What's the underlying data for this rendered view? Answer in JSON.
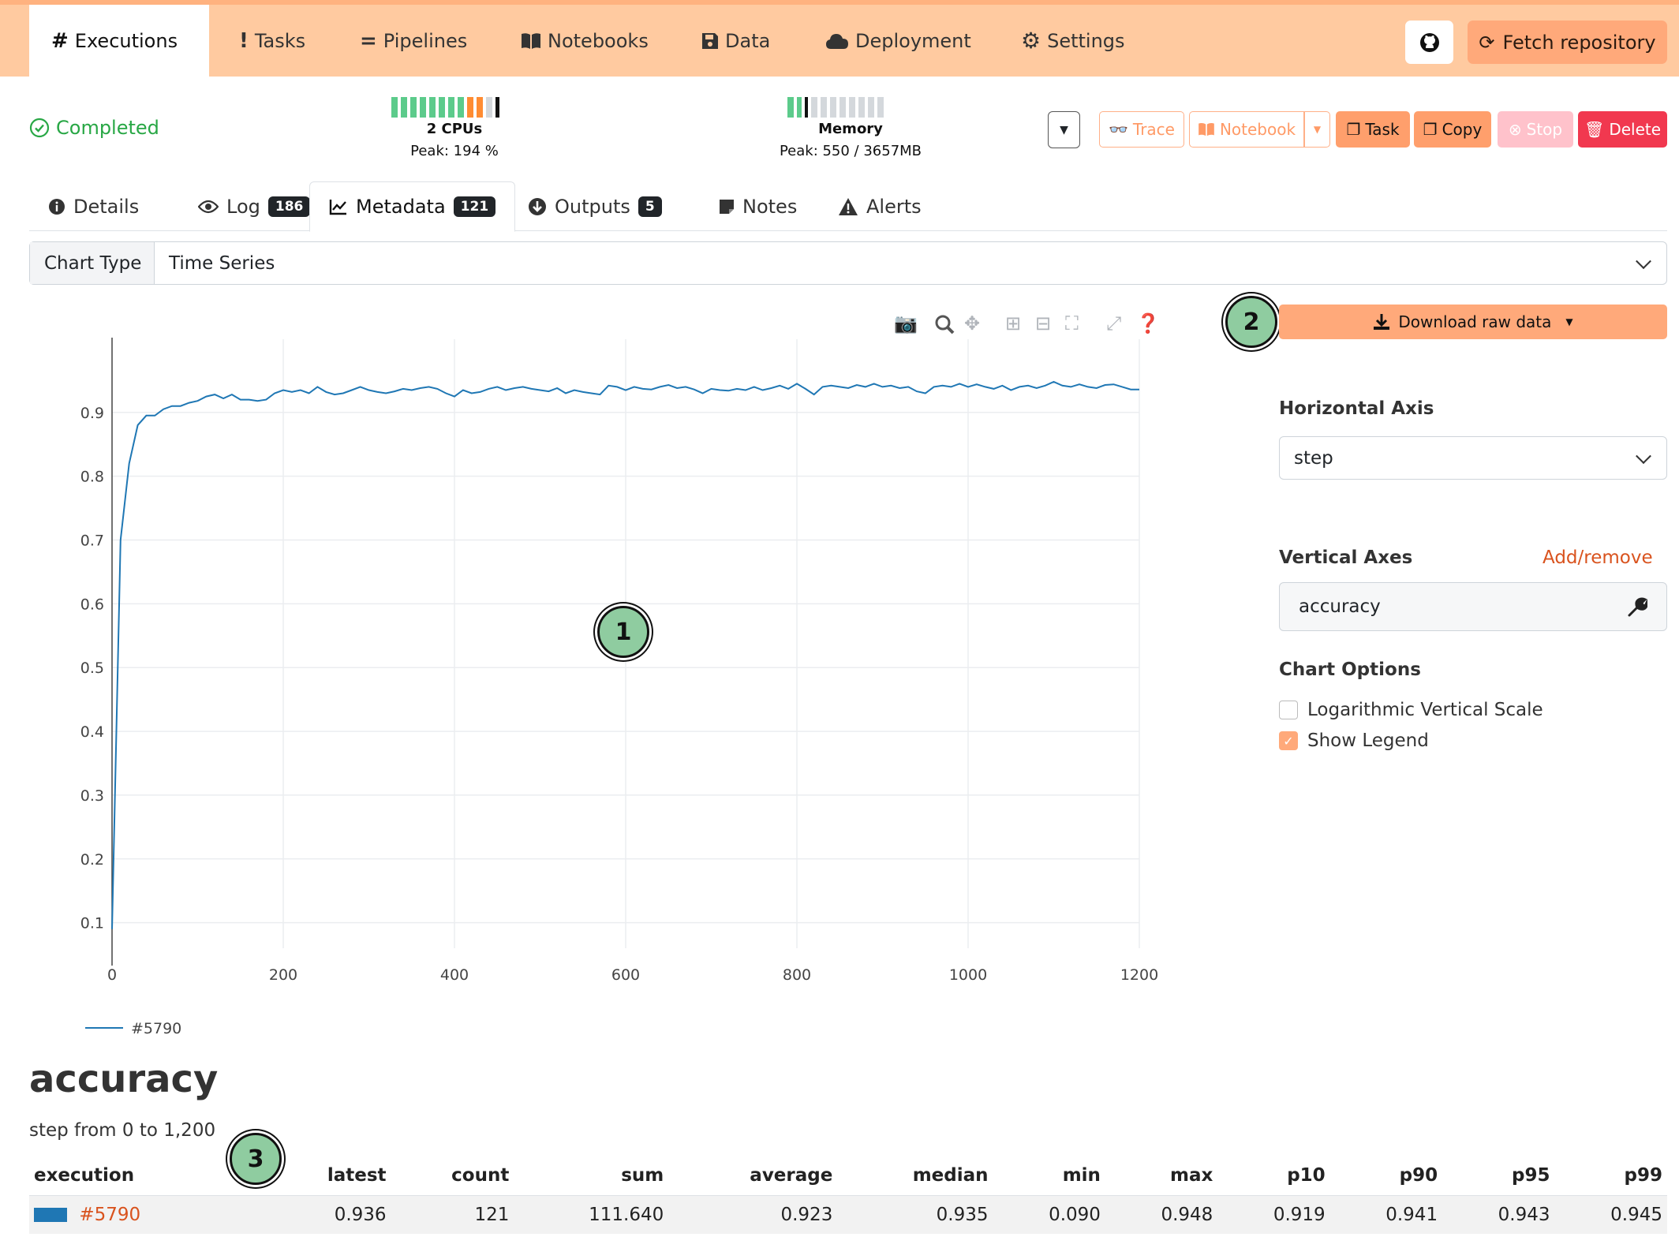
{
  "nav": {
    "tabs": [
      {
        "icon": "#",
        "label": "Executions"
      },
      {
        "icon": "!",
        "label": "Tasks"
      },
      {
        "icon": "=",
        "label": "Pipelines"
      },
      {
        "icon": "book",
        "label": "Notebooks"
      },
      {
        "icon": "floppy",
        "label": "Data"
      },
      {
        "icon": "cloud",
        "label": "Deployment"
      },
      {
        "icon": "gear",
        "label": "Settings"
      }
    ],
    "fetch_label": "Fetch repository"
  },
  "status": {
    "label": "Completed",
    "color": "#28a745"
  },
  "cpu": {
    "title": "2 CPUs",
    "peak": "Peak: 194 %"
  },
  "memory": {
    "title": "Memory",
    "peak": "Peak: 550 / 3657MB"
  },
  "actions": {
    "trace": "Trace",
    "notebook": "Notebook",
    "task": "Task",
    "copy": "Copy",
    "stop": "Stop",
    "delete": "Delete"
  },
  "subtabs": [
    {
      "label": "Details",
      "badge": ""
    },
    {
      "label": "Log",
      "badge": "186"
    },
    {
      "label": "Metadata",
      "badge": "121"
    },
    {
      "label": "Outputs",
      "badge": "5"
    },
    {
      "label": "Notes",
      "badge": ""
    },
    {
      "label": "Alerts",
      "badge": ""
    }
  ],
  "chart_type": {
    "label": "Chart Type",
    "value": "Time Series"
  },
  "panel": {
    "download_label": "Download raw data",
    "horizontal_axis_label": "Horizontal Axis",
    "horizontal_axis_value": "step",
    "vertical_axes_label": "Vertical Axes",
    "add_remove": "Add/remove",
    "vertical_axes_value": "accuracy",
    "chart_options_label": "Chart Options",
    "log_scale_label": "Logarithmic Vertical Scale",
    "log_scale_checked": false,
    "show_legend_label": "Show Legend",
    "show_legend_checked": true
  },
  "annotations": [
    "1",
    "2",
    "3"
  ],
  "chart_data": {
    "type": "line",
    "xlim": [
      0,
      1200
    ],
    "ylim": [
      0.06,
      0.99
    ],
    "x_ticks": [
      0,
      200,
      400,
      600,
      800,
      1000,
      1200
    ],
    "y_ticks": [
      0.1,
      0.2,
      0.3,
      0.4,
      0.5,
      0.6,
      0.7,
      0.8,
      0.9
    ],
    "grid": true,
    "legend_position": "bottom-left",
    "series": [
      {
        "name": "#5790",
        "color": "#1f77b4",
        "x": [
          0,
          10,
          20,
          30,
          40,
          50,
          60,
          70,
          80,
          90,
          100,
          110,
          120,
          130,
          140,
          150,
          160,
          170,
          180,
          190,
          200,
          210,
          220,
          230,
          240,
          250,
          260,
          270,
          280,
          290,
          300,
          310,
          320,
          330,
          340,
          350,
          360,
          370,
          380,
          390,
          400,
          410,
          420,
          430,
          440,
          450,
          460,
          470,
          480,
          490,
          500,
          510,
          520,
          530,
          540,
          550,
          560,
          570,
          580,
          590,
          600,
          610,
          620,
          630,
          640,
          650,
          660,
          670,
          680,
          690,
          700,
          710,
          720,
          730,
          740,
          750,
          760,
          770,
          780,
          790,
          800,
          810,
          820,
          830,
          840,
          850,
          860,
          870,
          880,
          890,
          900,
          910,
          920,
          930,
          940,
          950,
          960,
          970,
          980,
          990,
          1000,
          1010,
          1020,
          1030,
          1040,
          1050,
          1060,
          1070,
          1080,
          1090,
          1100,
          1110,
          1120,
          1130,
          1140,
          1150,
          1160,
          1170,
          1180,
          1190,
          1200
        ],
        "y": [
          0.09,
          0.7,
          0.82,
          0.88,
          0.895,
          0.895,
          0.905,
          0.91,
          0.91,
          0.915,
          0.918,
          0.925,
          0.928,
          0.922,
          0.928,
          0.92,
          0.92,
          0.918,
          0.92,
          0.93,
          0.935,
          0.932,
          0.935,
          0.93,
          0.94,
          0.932,
          0.928,
          0.93,
          0.935,
          0.94,
          0.935,
          0.932,
          0.93,
          0.933,
          0.937,
          0.935,
          0.938,
          0.94,
          0.937,
          0.93,
          0.925,
          0.935,
          0.93,
          0.932,
          0.937,
          0.94,
          0.935,
          0.938,
          0.94,
          0.937,
          0.935,
          0.933,
          0.938,
          0.93,
          0.935,
          0.932,
          0.93,
          0.928,
          0.942,
          0.94,
          0.935,
          0.94,
          0.937,
          0.936,
          0.94,
          0.943,
          0.938,
          0.94,
          0.936,
          0.93,
          0.937,
          0.935,
          0.934,
          0.937,
          0.935,
          0.94,
          0.935,
          0.938,
          0.942,
          0.937,
          0.945,
          0.937,
          0.928,
          0.94,
          0.942,
          0.94,
          0.938,
          0.943,
          0.94,
          0.945,
          0.94,
          0.942,
          0.938,
          0.94,
          0.933,
          0.93,
          0.94,
          0.942,
          0.94,
          0.945,
          0.94,
          0.944,
          0.94,
          0.937,
          0.942,
          0.935,
          0.94,
          0.942,
          0.938,
          0.942,
          0.948,
          0.942,
          0.94,
          0.944,
          0.94,
          0.938,
          0.943,
          0.944,
          0.94,
          0.936,
          0.936
        ]
      }
    ]
  },
  "stats": {
    "title": "accuracy",
    "subtitle": "step from 0 to 1,200",
    "columns": [
      "execution",
      "latest",
      "count",
      "sum",
      "average",
      "median",
      "min",
      "max",
      "p10",
      "p90",
      "p95",
      "p99"
    ],
    "rows": [
      {
        "execution": "#5790",
        "values": [
          "0.936",
          "121",
          "111.640",
          "0.923",
          "0.935",
          "0.090",
          "0.948",
          "0.919",
          "0.941",
          "0.943",
          "0.945"
        ]
      }
    ]
  }
}
